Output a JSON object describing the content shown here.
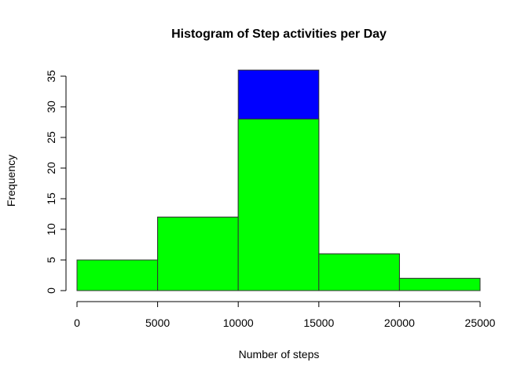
{
  "chart_data": {
    "type": "bar",
    "title": "Histogram of Step activities per Day",
    "xlabel": "Number of steps",
    "ylabel": "Frequency",
    "xlim": [
      0,
      25000
    ],
    "ylim": [
      0,
      35
    ],
    "x_ticks": [
      "0",
      "5000",
      "10000",
      "15000",
      "20000",
      "25000"
    ],
    "y_ticks": [
      "0",
      "5",
      "10",
      "15",
      "20",
      "25",
      "30",
      "35"
    ],
    "bins": [
      [
        0,
        5000
      ],
      [
        5000,
        10000
      ],
      [
        10000,
        15000
      ],
      [
        15000,
        20000
      ],
      [
        20000,
        25000
      ]
    ],
    "grid": false,
    "legend": "none",
    "series": [
      {
        "color": "#0000ff",
        "values": [
          5,
          12,
          36,
          6,
          2
        ]
      },
      {
        "color": "#00ff00",
        "values": [
          5,
          12,
          28,
          6,
          2
        ]
      }
    ]
  }
}
